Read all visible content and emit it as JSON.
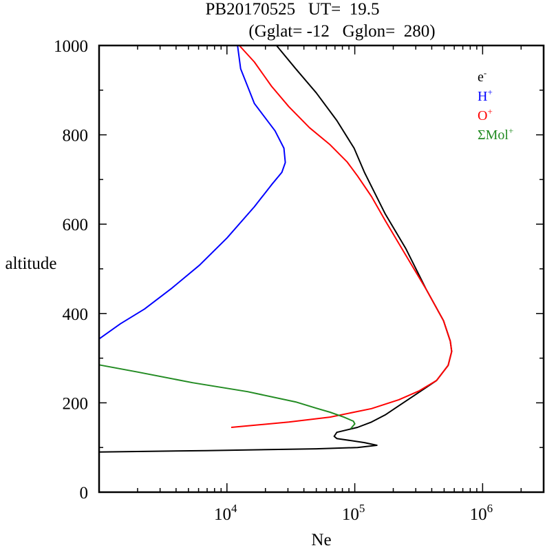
{
  "chart_data": {
    "type": "line",
    "title_line1": "PB20170525   UT=  19.5",
    "title_line2": "(Gglat= -12   Gglon=  280)",
    "xlabel": "Ne",
    "ylabel": "altitude",
    "xscale": "log",
    "xlim": [
      1000,
      3000000
    ],
    "ylim": [
      0,
      1000
    ],
    "x_tick_labels": [
      {
        "base": "10",
        "exp": "4",
        "value": 10000
      },
      {
        "base": "10",
        "exp": "5",
        "value": 100000
      },
      {
        "base": "10",
        "exp": "6",
        "value": 1000000
      }
    ],
    "y_ticks": [
      0,
      200,
      400,
      600,
      800,
      1000
    ],
    "y_tick_labels": [
      "0",
      "200",
      "400",
      "600",
      "800",
      "1000"
    ],
    "y_minor_ticks": [
      100,
      300,
      500,
      700,
      900
    ],
    "grid": false,
    "legend_position": "top-right",
    "series": [
      {
        "name": "e-",
        "label_main": "e",
        "label_sup": "-",
        "color": "#000000",
        "points": [
          [
            24400,
            1000
          ],
          [
            34500,
            948
          ],
          [
            50000,
            894
          ],
          [
            72400,
            832
          ],
          [
            98800,
            770
          ],
          [
            119000,
            716
          ],
          [
            173000,
            623
          ],
          [
            250000,
            546
          ],
          [
            362000,
            454
          ],
          [
            494000,
            384
          ],
          [
            559000,
            338
          ],
          [
            573000,
            315
          ],
          [
            538000,
            284
          ],
          [
            436000,
            250
          ],
          [
            301000,
            219
          ],
          [
            207000,
            188
          ],
          [
            173000,
            173
          ],
          [
            135000,
            157
          ],
          [
            105000,
            145
          ],
          [
            72400,
            134
          ],
          [
            69000,
            125
          ],
          [
            72400,
            120
          ],
          [
            119000,
            111
          ],
          [
            149000,
            105
          ],
          [
            105000,
            100
          ],
          [
            50000,
            97
          ],
          [
            6900,
            93
          ],
          [
            1000,
            90
          ]
        ]
      },
      {
        "name": "H+",
        "label_main": "H",
        "label_sup": "+",
        "color": "#0000ff",
        "points": [
          [
            12100,
            1000
          ],
          [
            12800,
            948
          ],
          [
            16400,
            870
          ],
          [
            23800,
            809
          ],
          [
            27900,
            770
          ],
          [
            28600,
            738
          ],
          [
            26900,
            716
          ],
          [
            22300,
            688
          ],
          [
            16400,
            639
          ],
          [
            10000,
            569
          ],
          [
            6095,
            508
          ],
          [
            3715,
            457
          ],
          [
            2265,
            410
          ],
          [
            1469,
            377
          ],
          [
            1000,
            343
          ]
        ]
      },
      {
        "name": "O+",
        "label_main": "O",
        "label_sup": "+",
        "color": "#ff0000",
        "points": [
          [
            12500,
            1000
          ],
          [
            16400,
            963
          ],
          [
            22300,
            909
          ],
          [
            30500,
            863
          ],
          [
            44200,
            816
          ],
          [
            64000,
            778
          ],
          [
            87300,
            739
          ],
          [
            105000,
            708
          ],
          [
            135000,
            662
          ],
          [
            173000,
            608
          ],
          [
            250000,
            531
          ],
          [
            362000,
            454
          ],
          [
            494000,
            384
          ],
          [
            559000,
            338
          ],
          [
            573000,
            315
          ],
          [
            538000,
            284
          ],
          [
            436000,
            250
          ],
          [
            320000,
            227
          ],
          [
            221000,
            207
          ],
          [
            135000,
            187
          ],
          [
            64000,
            168
          ],
          [
            30500,
            157
          ],
          [
            10800,
            145
          ]
        ]
      },
      {
        "name": "ΣMol+",
        "label_main": "ΣMol",
        "label_sup": "+",
        "color": "#228b22",
        "points": [
          [
            1000,
            285
          ],
          [
            2000,
            269
          ],
          [
            5380,
            245
          ],
          [
            14500,
            225
          ],
          [
            34500,
            202
          ],
          [
            50000,
            188
          ],
          [
            64000,
            179
          ],
          [
            82000,
            168
          ],
          [
            97500,
            159
          ],
          [
            100000,
            153
          ],
          [
            92900,
            142
          ]
        ]
      }
    ]
  }
}
